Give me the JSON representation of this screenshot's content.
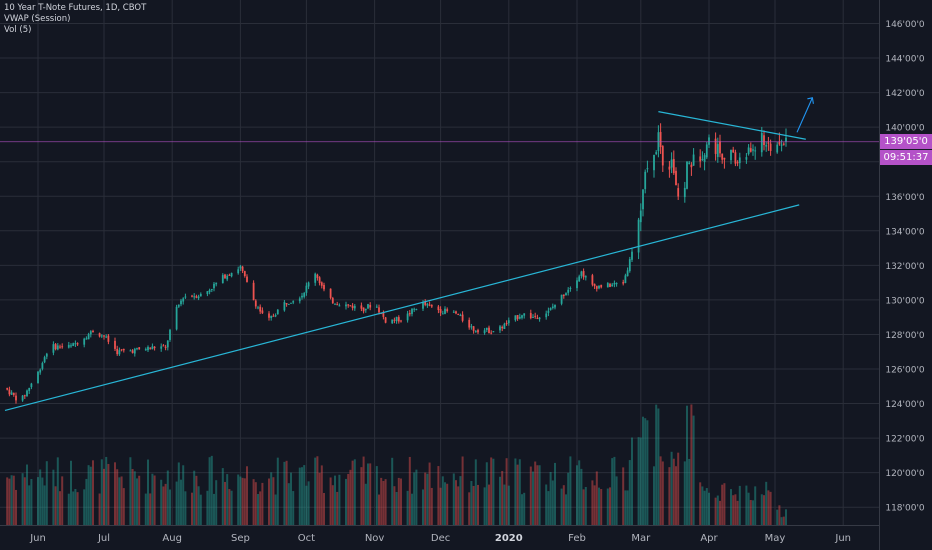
{
  "legend": {
    "title": "10 Year T-Note Futures, 1D, CBOT",
    "study1": "VWAP (Session)",
    "study2": "Vol (5)"
  },
  "price_tag": {
    "value": "139'05'0",
    "timer": "09:51:37",
    "color": "#b452c8"
  },
  "colors": {
    "background": "#131722",
    "grid": "#2a2e39",
    "up": "#26a69a",
    "down": "#ef5350",
    "trendline": "#28b6d6",
    "arrow": "#2196f3"
  },
  "chart_data": {
    "type": "candlestick",
    "title": "10 Year T-Note Futures, 1D, CBOT",
    "y_ticks": [
      "146'00'0",
      "144'00'0",
      "142'00'0",
      "140'00'0",
      "138'00'0",
      "136'00'0",
      "134'00'0",
      "132'00'0",
      "130'00'0",
      "128'00'0",
      "126'00'0",
      "124'00'0",
      "122'00'0",
      "120'00'0",
      "118'00'0"
    ],
    "ylim": [
      117.5,
      146.5
    ],
    "x_ticks": [
      "Jun",
      "Jul",
      "Aug",
      "Sep",
      "Oct",
      "Nov",
      "Dec",
      "2020",
      "Feb",
      "Mar",
      "Apr",
      "May",
      "Jun"
    ],
    "x_tick_days": [
      0,
      30,
      61,
      92,
      122,
      153,
      183,
      214,
      245,
      274,
      305,
      335,
      366
    ],
    "xlim_days": [
      -15,
      389
    ],
    "price_path": [
      [
        -15,
        124.9
      ],
      [
        -8,
        124.1
      ],
      [
        0,
        125.8
      ],
      [
        5,
        127.3
      ],
      [
        15,
        127.3
      ],
      [
        25,
        128.2
      ],
      [
        30,
        127.9
      ],
      [
        36,
        127.0
      ],
      [
        45,
        127.1
      ],
      [
        55,
        127.3
      ],
      [
        58,
        127.2
      ],
      [
        62,
        129.2
      ],
      [
        66,
        130.2
      ],
      [
        75,
        130.3
      ],
      [
        85,
        131.4
      ],
      [
        92,
        131.9
      ],
      [
        98,
        130.0
      ],
      [
        104,
        128.7
      ],
      [
        112,
        129.8
      ],
      [
        120,
        130.3
      ],
      [
        126,
        131.6
      ],
      [
        132,
        130.0
      ],
      [
        140,
        129.7
      ],
      [
        148,
        129.5
      ],
      [
        153,
        129.8
      ],
      [
        158,
        128.8
      ],
      [
        166,
        128.9
      ],
      [
        174,
        129.8
      ],
      [
        183,
        129.4
      ],
      [
        190,
        129.2
      ],
      [
        198,
        128.3
      ],
      [
        208,
        128.2
      ],
      [
        214,
        128.7
      ],
      [
        220,
        129.2
      ],
      [
        225,
        129.0
      ],
      [
        232,
        129.3
      ],
      [
        240,
        130.5
      ],
      [
        247,
        131.6
      ],
      [
        252,
        130.8
      ],
      [
        258,
        130.8
      ],
      [
        266,
        131.0
      ],
      [
        270,
        132.7
      ],
      [
        274,
        135.2
      ],
      [
        277,
        138.0
      ],
      [
        280,
        138.2
      ],
      [
        282,
        139.6
      ],
      [
        285,
        137.2
      ],
      [
        288,
        138.3
      ],
      [
        290,
        136.7
      ],
      [
        292,
        134.4
      ],
      [
        295,
        137.8
      ],
      [
        300,
        138.2
      ],
      [
        305,
        139.2
      ],
      [
        310,
        138.6
      ],
      [
        314,
        138.4
      ],
      [
        318,
        138.0
      ],
      [
        322,
        138.4
      ],
      [
        328,
        139.3
      ],
      [
        334,
        138.9
      ],
      [
        340,
        139.2
      ]
    ],
    "volume": {
      "ylim": [
        0,
        3000
      ]
    },
    "annotations": {
      "rising_trendline": {
        "from": [
          -15,
          123.6
        ],
        "to": [
          346,
          135.5
        ]
      },
      "falling_trendline": {
        "from": [
          282,
          140.9
        ],
        "to": [
          349,
          139.3
        ]
      },
      "arrow": {
        "from": [
          345,
          139.7
        ],
        "to": [
          352,
          141.7
        ]
      },
      "last_price": 139.156
    }
  }
}
